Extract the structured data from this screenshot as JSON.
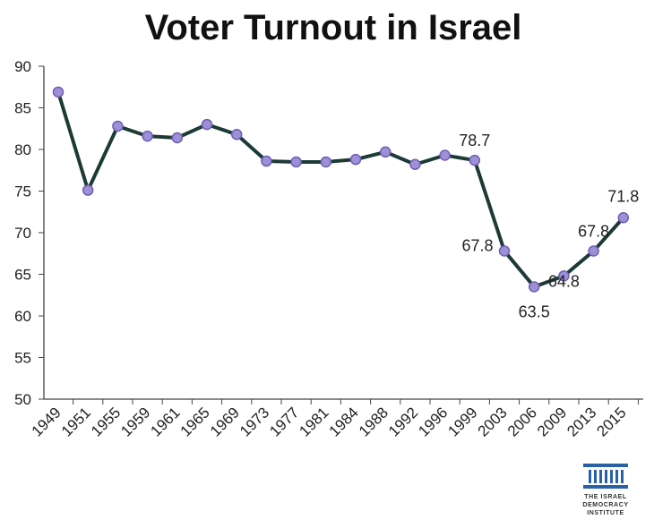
{
  "chart_data": {
    "type": "line",
    "title": "Voter Turnout in Israel",
    "xlabel": "",
    "ylabel": "",
    "ylim": [
      50,
      90
    ],
    "yticks": [
      50,
      55,
      60,
      65,
      70,
      75,
      80,
      85,
      90
    ],
    "categories": [
      "1949",
      "1951",
      "1955",
      "1959",
      "1961",
      "1965",
      "1969",
      "1973",
      "1977",
      "1981",
      "1984",
      "1988",
      "1992",
      "1996",
      "1999",
      "2003",
      "2006",
      "2009",
      "2013",
      "2015"
    ],
    "series": [
      {
        "values": [
          86.9,
          75.1,
          82.8,
          81.6,
          81.4,
          83.0,
          81.8,
          78.6,
          78.5,
          78.5,
          78.8,
          79.7,
          78.2,
          79.3,
          78.7,
          67.8,
          63.5,
          64.8,
          67.8,
          71.8
        ],
        "line_color": "#1c3a36",
        "marker_color": "#9e8fd6",
        "marker_edge": "#6f5fb5"
      }
    ],
    "data_labels": [
      {
        "index": 14,
        "text": "78.7"
      },
      {
        "index": 15,
        "text": "67.8"
      },
      {
        "index": 16,
        "text": "63.5"
      },
      {
        "index": 17,
        "text": "64.8"
      },
      {
        "index": 18,
        "text": "67.8"
      },
      {
        "index": 19,
        "text": "71.8"
      }
    ],
    "grid": false,
    "legend": "none"
  },
  "logo": {
    "text_lines": [
      "THE ISRAEL",
      "DEMOCRACY",
      "INSTITUTE"
    ],
    "color": "#2b5fa6"
  }
}
